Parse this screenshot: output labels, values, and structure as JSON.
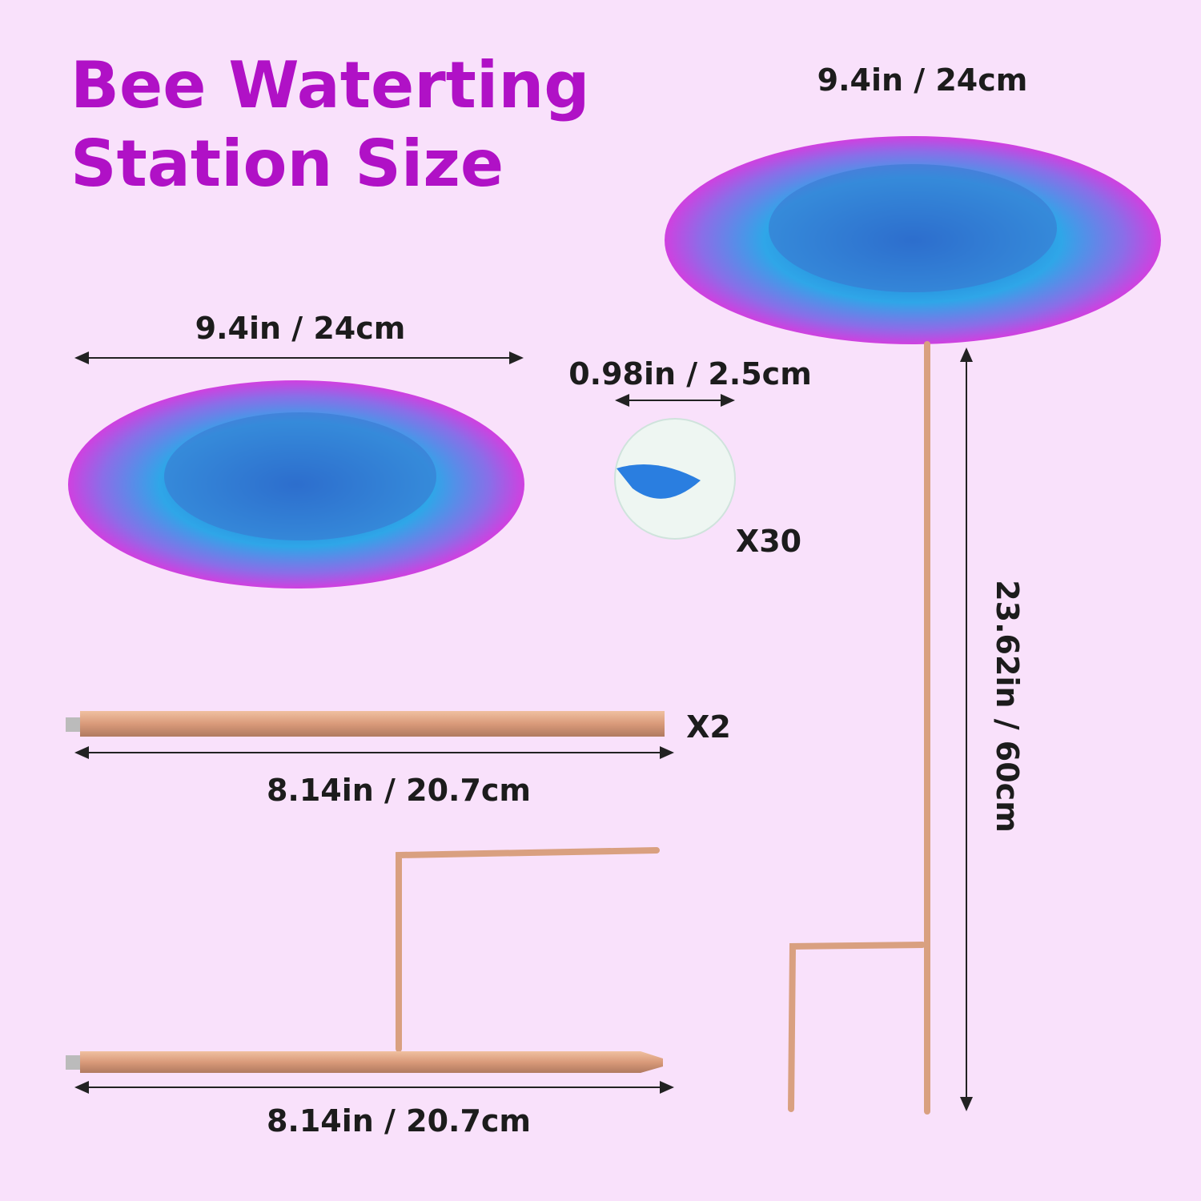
{
  "title": {
    "line1": "Bee Waterting",
    "line2": "Station Size"
  },
  "labels": {
    "dish_top_width": "9.4in / 24cm",
    "dish_width": "9.4in / 24cm",
    "marble_diameter": "0.98in / 2.5cm",
    "marble_count": "X30",
    "rod_count": "X2",
    "rod_length": "8.14in / 20.7cm",
    "stake_length": "8.14in / 20.7cm",
    "total_height": "23.62in / 60cm"
  },
  "colors": {
    "title": "#b011c6",
    "background": "#f9e1fb",
    "copper": "#d9a080",
    "dish_rim": "#c040e0",
    "dish_center": "#2a8ee0"
  }
}
